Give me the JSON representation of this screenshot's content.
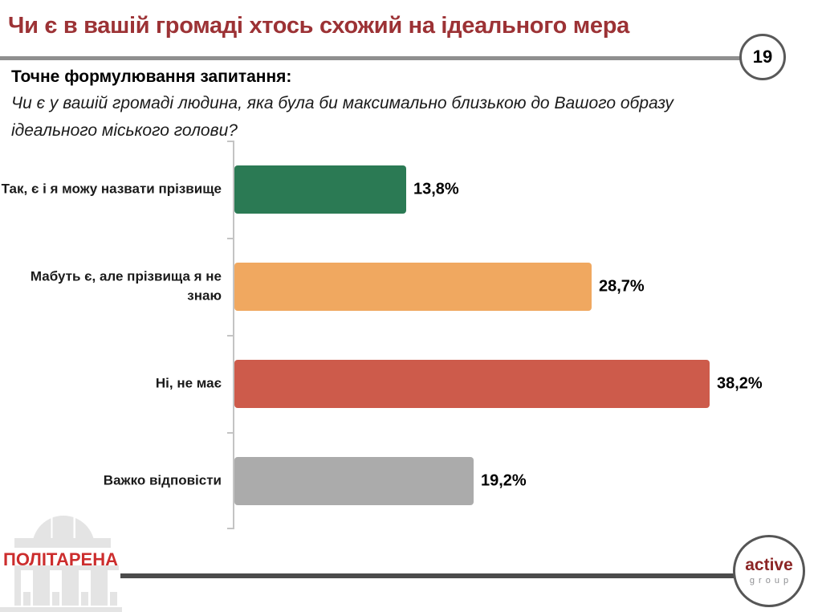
{
  "page": {
    "number": "19"
  },
  "header": {
    "title": "Чи є в вашій громаді хтось схожий на ідеального мера",
    "title_color": "#9c3235"
  },
  "question": {
    "label": "Точне формулювання запитання:",
    "line1": "Чи є у вашій громаді людина, яка була би максимально близькою до Вашого образу",
    "line2": "ідеального міського голови?"
  },
  "chart_data": {
    "type": "bar",
    "orientation": "horizontal",
    "title": "",
    "xlabel": "",
    "ylabel": "",
    "categories": [
      "Так, є і я можу назвати прізвище",
      "Мабуть є, але прізвища я не знаю",
      "Ні, не має",
      "Важко відповісти"
    ],
    "values": [
      13.8,
      28.7,
      38.2,
      19.2
    ],
    "value_labels": [
      "13,8%",
      "28,7%",
      "38,2%",
      "19,2%"
    ],
    "bar_colors": [
      "#2b7a54",
      "#f0a860",
      "#cd5b4b",
      "#ababab"
    ],
    "xlim": [
      0,
      40
    ],
    "grid": false,
    "legend": false
  },
  "footer": {
    "politarena_text": "ПОЛІТАРЕНА",
    "active_line1": "active",
    "active_line2": "group"
  }
}
